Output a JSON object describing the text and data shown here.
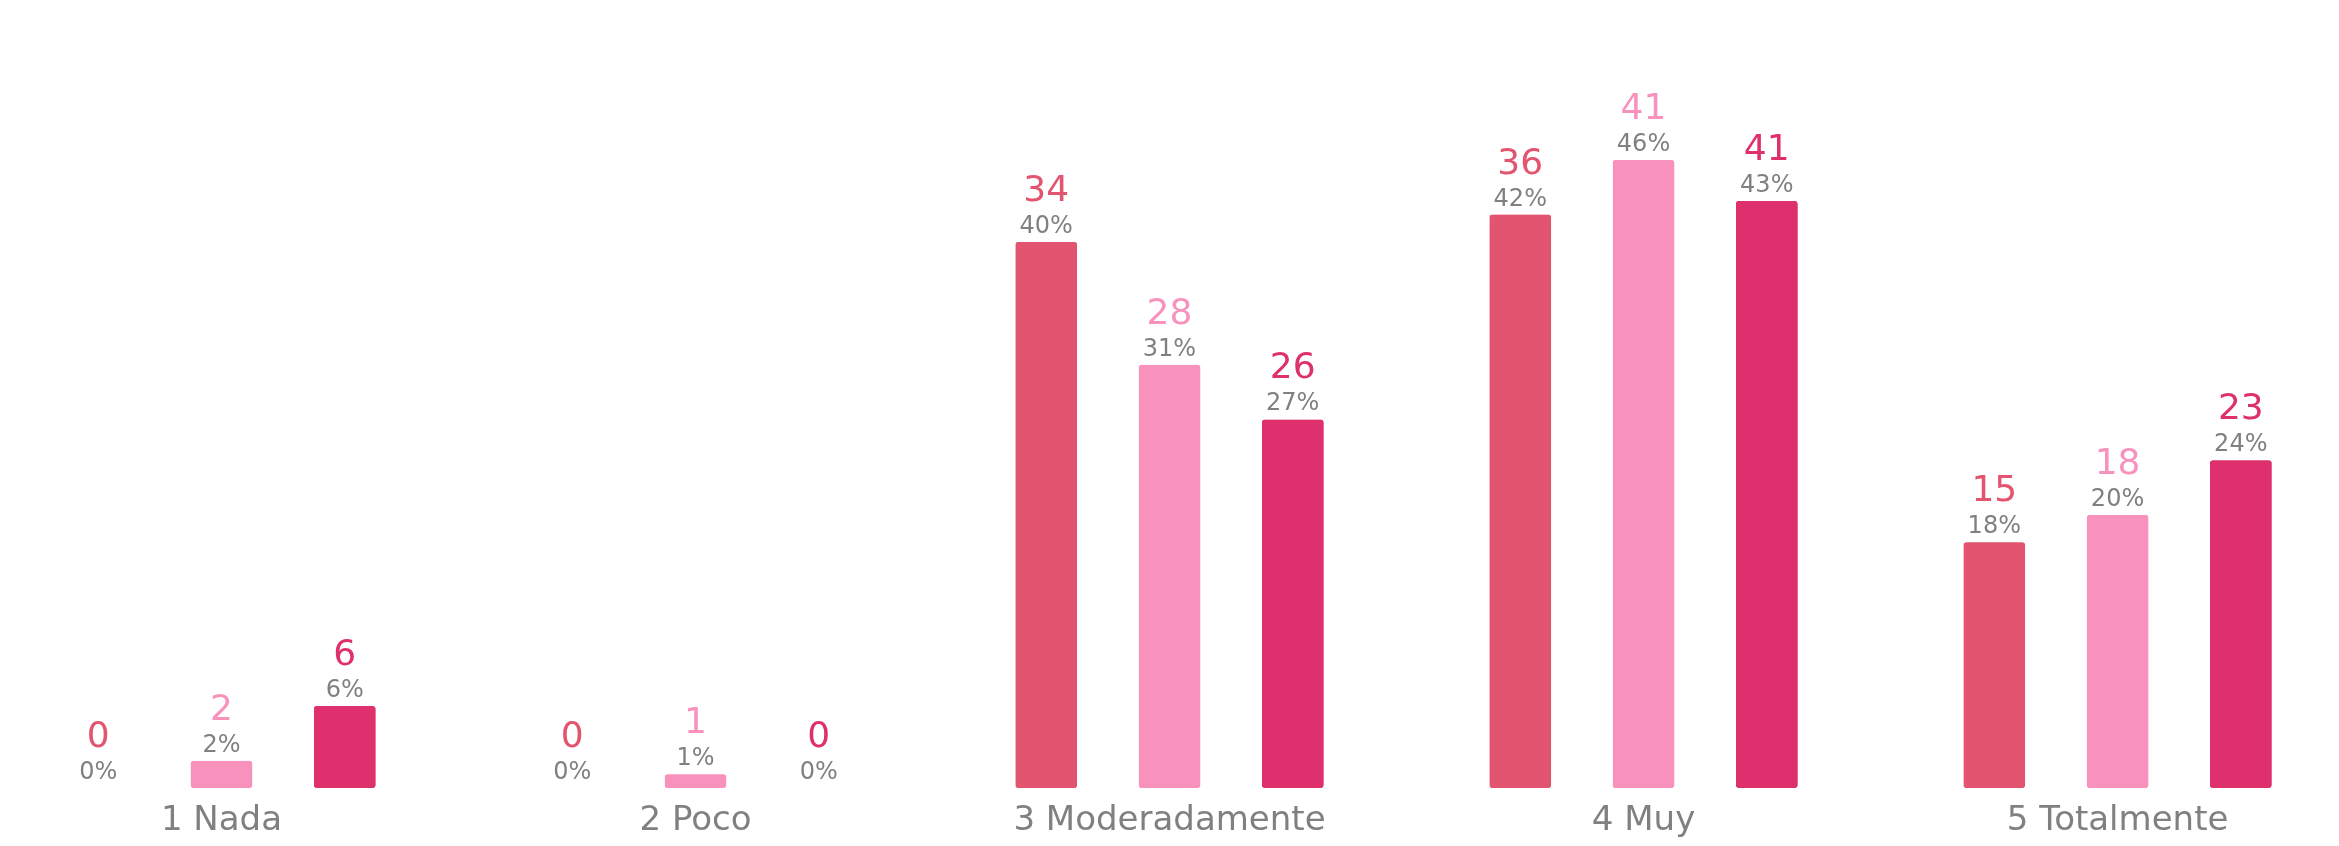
{
  "chart_data": {
    "type": "bar",
    "categories": [
      "1 Nada",
      "2 Poco",
      "3 Moderadamente",
      "4 Muy",
      "5 Totalmente"
    ],
    "series": [
      {
        "color": "#e2546f",
        "values": [
          0,
          0,
          40,
          42,
          18
        ],
        "value_labels": [
          "0%",
          "0%",
          "40%",
          "42%",
          "18%"
        ]
      },
      {
        "color": "#f892bd",
        "values": [
          2,
          1,
          31,
          46,
          20
        ],
        "value_labels": [
          "2%",
          "1%",
          "31%",
          "46%",
          "20%"
        ]
      },
      {
        "color": "#de306d",
        "values": [
          6,
          0,
          27,
          43,
          24
        ],
        "value_labels": [
          "6%",
          "0%",
          "27%",
          "43%",
          "24%"
        ]
      }
    ],
    "tick_labels": "x",
    "annotations": [
      "0",
      "0",
      "34",
      "36",
      "15",
      "2",
      "1",
      "28",
      "41",
      "18",
      "6",
      "0",
      "26",
      "41",
      "23"
    ]
  }
}
